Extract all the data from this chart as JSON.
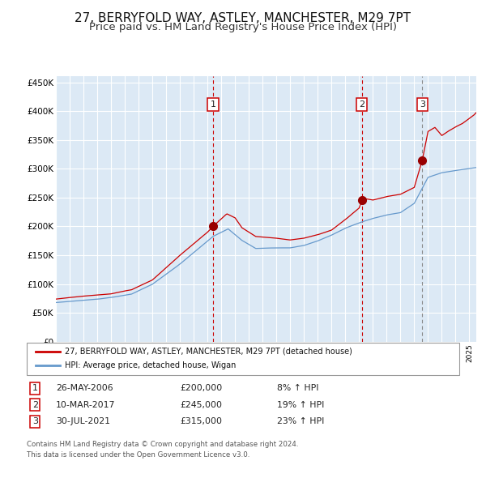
{
  "title": "27, BERRYFOLD WAY, ASTLEY, MANCHESTER, M29 7PT",
  "subtitle": "Price paid vs. HM Land Registry's House Price Index (HPI)",
  "title_fontsize": 11,
  "subtitle_fontsize": 9.5,
  "bg_color": "#dce9f5",
  "grid_color": "#ffffff",
  "red_line_color": "#cc0000",
  "blue_line_color": "#6699cc",
  "sale_marker_color": "#990000",
  "vline_red_color": "#cc0000",
  "vline_gray_color": "#888888",
  "legend_label_red": "27, BERRYFOLD WAY, ASTLEY, MANCHESTER, M29 7PT (detached house)",
  "legend_label_blue": "HPI: Average price, detached house, Wigan",
  "sales": [
    {
      "label": "1",
      "date_dec": 2006.4,
      "price": 200000,
      "pct": "8%",
      "date_str": "26-MAY-2006"
    },
    {
      "label": "2",
      "date_dec": 2017.19,
      "price": 245000,
      "pct": "19%",
      "date_str": "10-MAR-2017"
    },
    {
      "label": "3",
      "date_dec": 2021.58,
      "price": 315000,
      "pct": "23%",
      "date_str": "30-JUL-2021"
    }
  ],
  "footer_line1": "Contains HM Land Registry data © Crown copyright and database right 2024.",
  "footer_line2": "This data is licensed under the Open Government Licence v3.0.",
  "ylim": [
    0,
    460000
  ],
  "xlim_start": 1995.0,
  "xlim_end": 2025.5,
  "hpi_anchors": {
    "1995.0": 68000,
    "1998.0": 74000,
    "1999.0": 77000,
    "2000.5": 83000,
    "2002.0": 100000,
    "2004.0": 135000,
    "2005.0": 155000,
    "2006.4": 183000,
    "2007.5": 196000,
    "2008.5": 176000,
    "2009.5": 162000,
    "2011.0": 163000,
    "2012.0": 163000,
    "2013.0": 167000,
    "2014.0": 175000,
    "2015.0": 185000,
    "2016.0": 197000,
    "2017.2": 208000,
    "2018.0": 214000,
    "2019.0": 220000,
    "2020.0": 224000,
    "2021.0": 240000,
    "2022.0": 285000,
    "2023.0": 293000,
    "2024.0": 297000,
    "2025.5": 302000
  },
  "red_anchors": {
    "1995.0": 74000,
    "1997.0": 79000,
    "1999.0": 83000,
    "2000.5": 90000,
    "2002.0": 107000,
    "2004.0": 150000,
    "2005.0": 170000,
    "2006.0": 190000,
    "2006.4": 200000,
    "2007.4": 222000,
    "2008.0": 215000,
    "2008.5": 198000,
    "2009.5": 183000,
    "2011.0": 180000,
    "2012.0": 177000,
    "2013.0": 180000,
    "2014.0": 186000,
    "2015.0": 194000,
    "2016.0": 212000,
    "2017.0": 232000,
    "2017.19": 245000,
    "2017.5": 248000,
    "2018.0": 246000,
    "2019.0": 252000,
    "2020.0": 256000,
    "2021.0": 268000,
    "2021.58": 315000,
    "2022.0": 365000,
    "2022.5": 372000,
    "2023.0": 358000,
    "2023.5": 366000,
    "2024.0": 373000,
    "2024.5": 379000,
    "2025.3": 393000,
    "2025.5": 398000
  }
}
